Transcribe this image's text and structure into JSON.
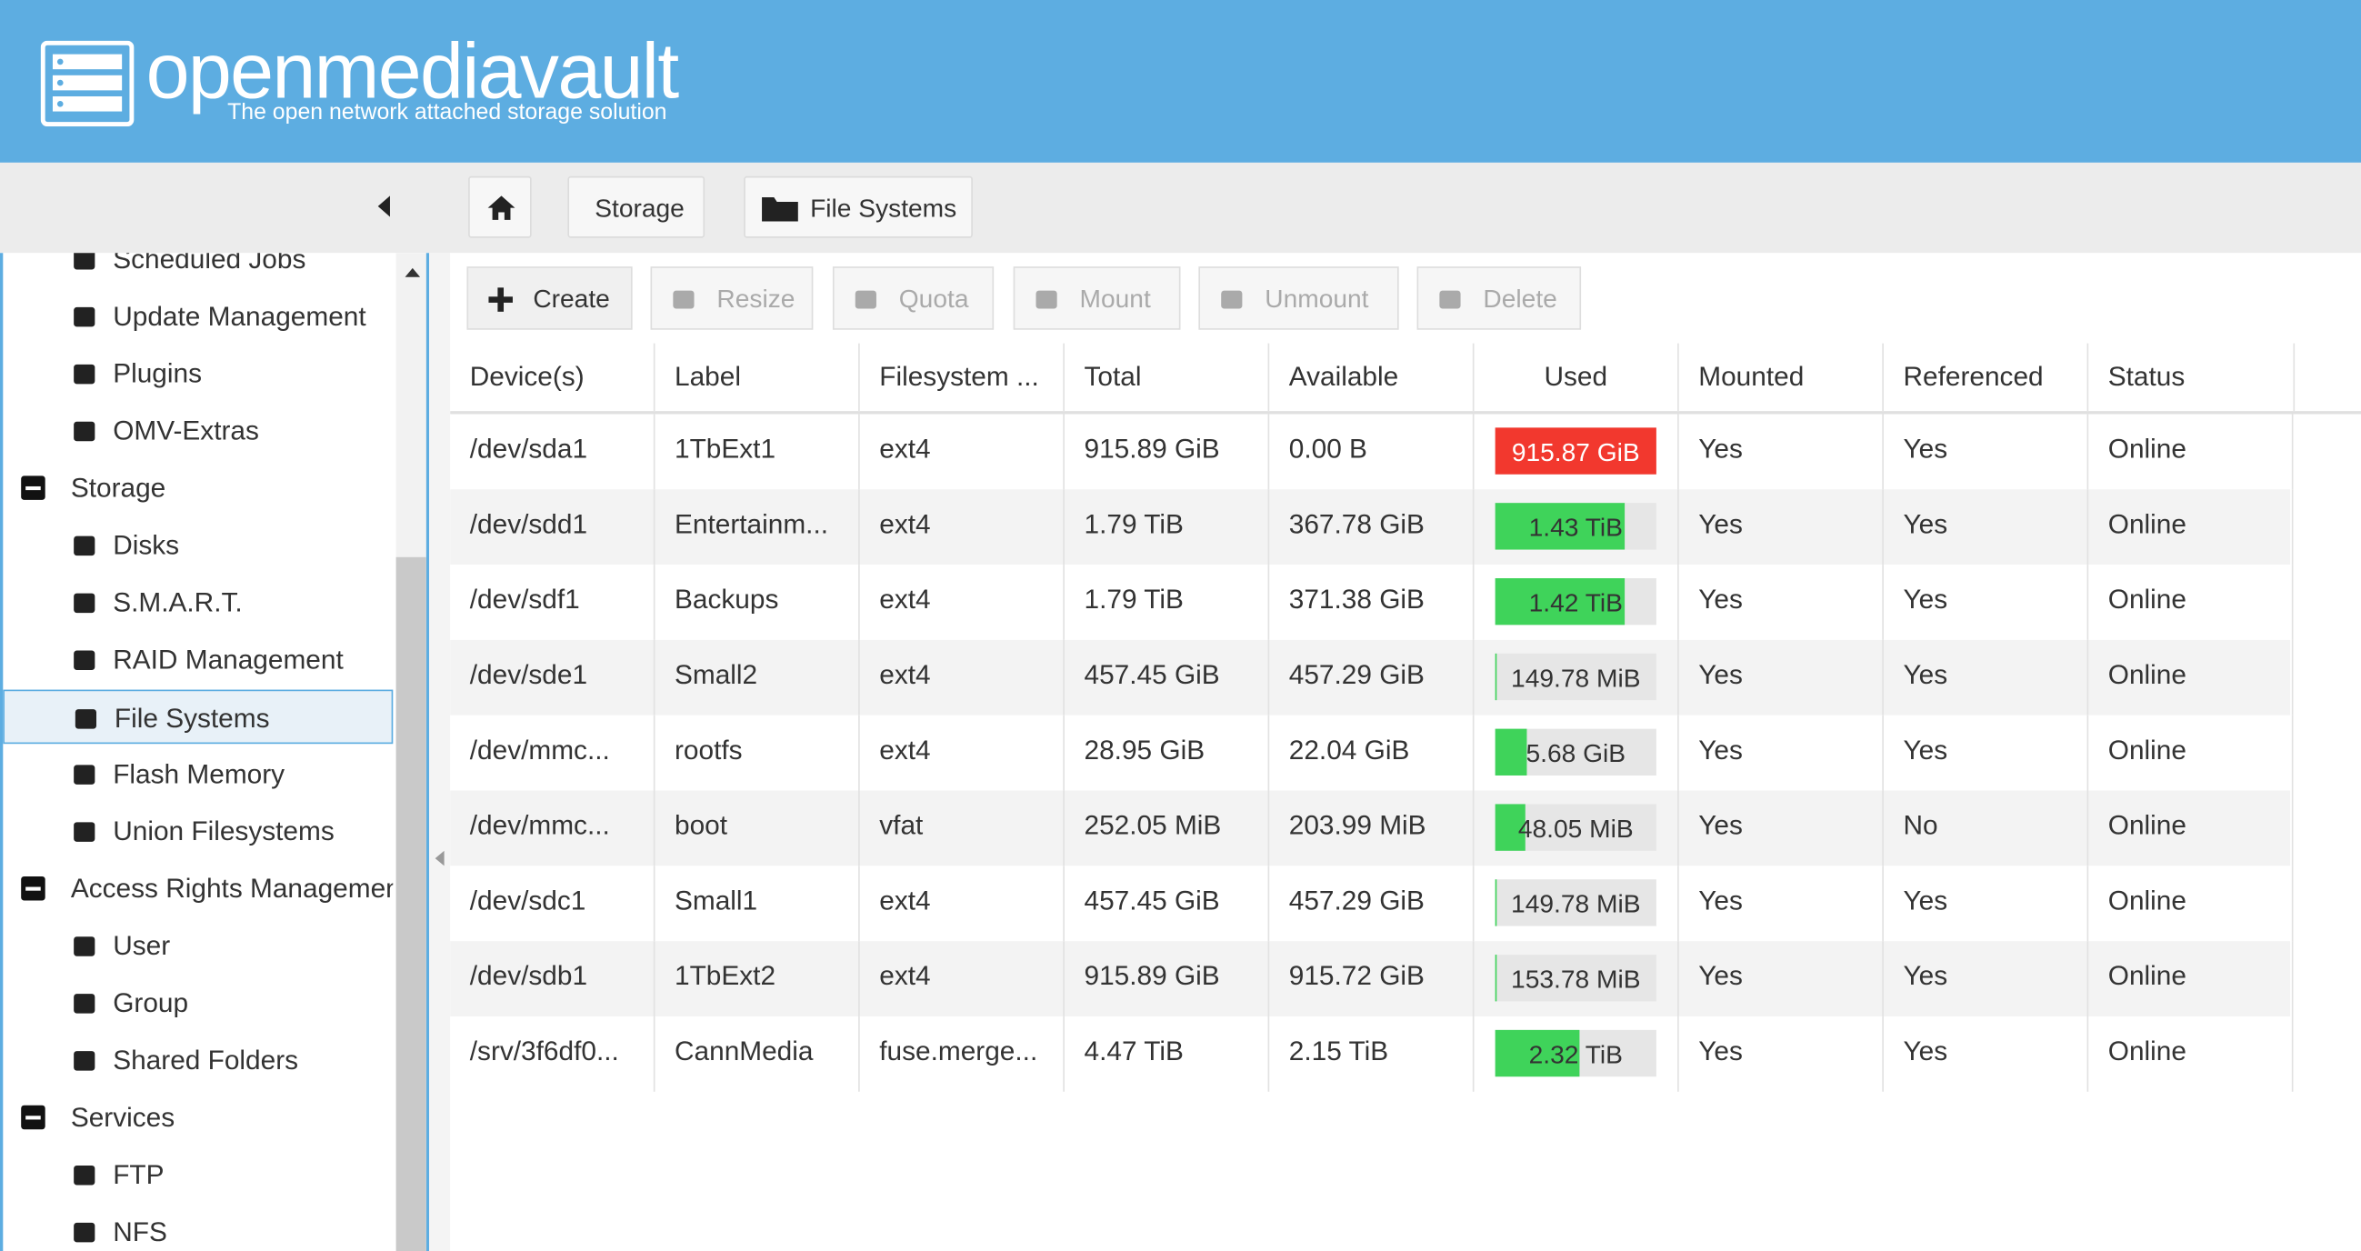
{
  "header": {
    "title": "openmediavault",
    "subtitle": "The open network attached storage solution"
  },
  "breadcrumb": [
    "Storage",
    "File Systems"
  ],
  "sidebar": {
    "items": [
      {
        "label": "Scheduled Jobs",
        "kind": "item"
      },
      {
        "label": "Update Management",
        "kind": "item"
      },
      {
        "label": "Plugins",
        "kind": "item"
      },
      {
        "label": "OMV-Extras",
        "kind": "item"
      },
      {
        "label": "Storage",
        "kind": "group"
      },
      {
        "label": "Disks",
        "kind": "item"
      },
      {
        "label": "S.M.A.R.T.",
        "kind": "item"
      },
      {
        "label": "RAID Management",
        "kind": "item"
      },
      {
        "label": "File Systems",
        "kind": "item",
        "selected": true
      },
      {
        "label": "Flash Memory",
        "kind": "item"
      },
      {
        "label": "Union Filesystems",
        "kind": "item"
      },
      {
        "label": "Access Rights Management",
        "kind": "group"
      },
      {
        "label": "User",
        "kind": "item"
      },
      {
        "label": "Group",
        "kind": "item"
      },
      {
        "label": "Shared Folders",
        "kind": "item"
      },
      {
        "label": "Services",
        "kind": "group"
      },
      {
        "label": "FTP",
        "kind": "item"
      },
      {
        "label": "NFS",
        "kind": "item"
      }
    ]
  },
  "toolbar": [
    {
      "label": "Create",
      "enabled": true
    },
    {
      "label": "Resize",
      "enabled": false
    },
    {
      "label": "Quota",
      "enabled": false
    },
    {
      "label": "Mount",
      "enabled": false
    },
    {
      "label": "Unmount",
      "enabled": false
    },
    {
      "label": "Delete",
      "enabled": false
    }
  ],
  "table": {
    "columns": [
      "Device(s)",
      "Label",
      "Filesystem ...",
      "Total",
      "Available",
      "Used",
      "Mounted",
      "Referenced",
      "Status"
    ],
    "rows": [
      {
        "cells": [
          "/dev/sda1",
          "1TbExt1",
          "ext4",
          "915.89 GiB",
          "0.00 B",
          "915.87 GiB",
          "Yes",
          "Yes",
          "Online"
        ],
        "used_percent": 100,
        "used_color": "#f2382e"
      },
      {
        "cells": [
          "/dev/sdd1",
          "Entertainm...",
          "ext4",
          "1.79 TiB",
          "367.78 GiB",
          "1.43 TiB",
          "Yes",
          "Yes",
          "Online"
        ],
        "used_percent": 80,
        "used_color": "#3fd35a"
      },
      {
        "cells": [
          "/dev/sdf1",
          "Backups",
          "ext4",
          "1.79 TiB",
          "371.38 GiB",
          "1.42 TiB",
          "Yes",
          "Yes",
          "Online"
        ],
        "used_percent": 80,
        "used_color": "#3fd35a"
      },
      {
        "cells": [
          "/dev/sde1",
          "Small2",
          "ext4",
          "457.45 GiB",
          "457.29 GiB",
          "149.78 MiB",
          "Yes",
          "Yes",
          "Online"
        ],
        "used_percent": 1,
        "used_color": "#3fd35a"
      },
      {
        "cells": [
          "/dev/mmc...",
          "rootfs",
          "ext4",
          "28.95 GiB",
          "22.04 GiB",
          "5.68 GiB",
          "Yes",
          "Yes",
          "Online"
        ],
        "used_percent": 20,
        "used_color": "#3fd35a"
      },
      {
        "cells": [
          "/dev/mmc...",
          "boot",
          "vfat",
          "252.05 MiB",
          "203.99 MiB",
          "48.05 MiB",
          "Yes",
          "No",
          "Online"
        ],
        "used_percent": 19,
        "used_color": "#3fd35a"
      },
      {
        "cells": [
          "/dev/sdc1",
          "Small1",
          "ext4",
          "457.45 GiB",
          "457.29 GiB",
          "149.78 MiB",
          "Yes",
          "Yes",
          "Online"
        ],
        "used_percent": 1,
        "used_color": "#3fd35a"
      },
      {
        "cells": [
          "/dev/sdb1",
          "1TbExt2",
          "ext4",
          "915.89 GiB",
          "915.72 GiB",
          "153.78 MiB",
          "Yes",
          "Yes",
          "Online"
        ],
        "used_percent": 1,
        "used_color": "#3fd35a"
      },
      {
        "cells": [
          "/srv/3f6df0...",
          "CannMedia",
          "fuse.merge...",
          "4.47 TiB",
          "2.15 TiB",
          "2.32 TiB",
          "Yes",
          "Yes",
          "Online"
        ],
        "used_percent": 52,
        "used_color": "#3fd35a"
      }
    ]
  }
}
